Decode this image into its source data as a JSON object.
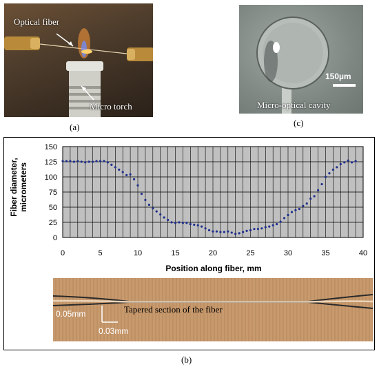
{
  "panel_a": {
    "caption": "(a)",
    "label_fiber": "Optical fiber",
    "label_torch": "Micro torch"
  },
  "panel_c": {
    "caption": "(c)",
    "scale_label": "150µm",
    "label_cavity": "Micro-optical cavity"
  },
  "panel_b": {
    "caption": "(b)",
    "strip_label": "Tapered section of the fiber",
    "dim_vertical": "0.05mm",
    "dim_horizontal": "0.03mm"
  },
  "colors": {
    "plot_bg": "#c0c0c0",
    "grid": "#000000",
    "marker": "#1f2f8c",
    "flame": "#ff7a1a"
  },
  "chart_data": {
    "type": "scatter",
    "xlabel": "Position along fiber, mm",
    "ylabel": "Fiber diameter, micrometers",
    "xlim": [
      0,
      40
    ],
    "ylim": [
      0,
      150
    ],
    "xticks": [
      0,
      5,
      10,
      15,
      20,
      25,
      30,
      35,
      40
    ],
    "yticks": [
      0,
      25,
      50,
      75,
      100,
      125,
      150
    ],
    "grid": true,
    "legend": "none",
    "x": [
      0,
      0.5,
      1,
      1.5,
      2,
      2.5,
      3,
      3.5,
      4,
      4.5,
      5,
      5.5,
      6,
      6.5,
      7,
      7.5,
      8,
      8.5,
      9,
      9.5,
      10,
      10.5,
      11,
      11.5,
      12,
      12.5,
      13,
      13.5,
      14,
      14.5,
      15,
      15.5,
      16,
      16.5,
      17,
      17.5,
      18,
      18.5,
      19,
      19.5,
      20,
      20.5,
      21,
      21.5,
      22,
      22.5,
      23,
      23.5,
      24,
      24.5,
      25,
      25.5,
      26,
      26.5,
      27,
      27.5,
      28,
      28.5,
      29,
      29.5,
      30,
      30.5,
      31,
      31.5,
      32,
      32.5,
      33,
      33.5,
      34,
      34.5,
      35,
      35.5,
      36,
      36.5,
      37,
      37.5,
      38,
      38.5,
      39
    ],
    "y": [
      126,
      126,
      126,
      125,
      126,
      125,
      124,
      125,
      125,
      126,
      126,
      126,
      124,
      120,
      116,
      112,
      108,
      103,
      104,
      96,
      86,
      72,
      62,
      54,
      48,
      43,
      38,
      33,
      29,
      25,
      24,
      25,
      24,
      24,
      22,
      21,
      20,
      18,
      15,
      12,
      10,
      10,
      9,
      9,
      10,
      8,
      6,
      7,
      9,
      11,
      12,
      14,
      14,
      15,
      17,
      18,
      20,
      22,
      26,
      32,
      37,
      42,
      45,
      47,
      52,
      56,
      64,
      68,
      78,
      88,
      100,
      106,
      112,
      116,
      121,
      124,
      127,
      124,
      126
    ]
  }
}
